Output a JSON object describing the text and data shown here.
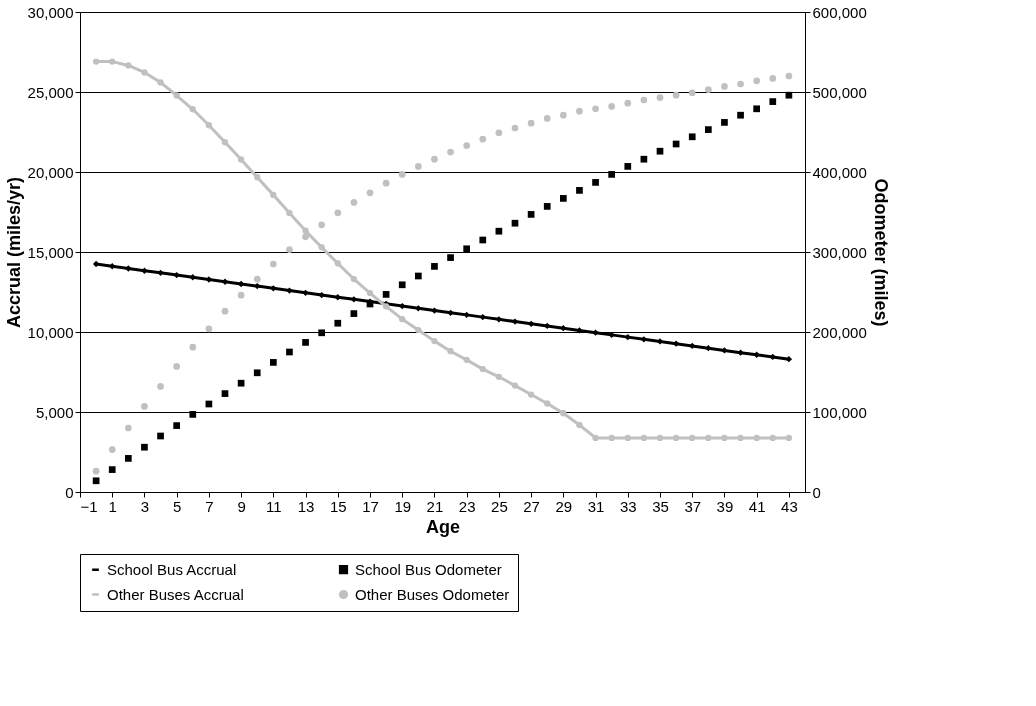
{
  "chart_data": {
    "type": "line",
    "xlabel": "Age",
    "ylabel": "Accrual (miles/yr)",
    "y2label": "Odometer (miles)",
    "x": [
      0,
      1,
      2,
      3,
      4,
      5,
      6,
      7,
      8,
      9,
      10,
      11,
      12,
      13,
      14,
      15,
      16,
      17,
      18,
      19,
      20,
      21,
      22,
      23,
      24,
      25,
      26,
      27,
      28,
      29,
      30,
      31,
      32,
      33,
      34,
      35,
      36,
      37,
      38,
      39,
      40,
      41,
      42,
      43
    ],
    "xlim": [
      -1,
      44
    ],
    "xticks": [
      -1,
      1,
      3,
      5,
      7,
      9,
      11,
      13,
      15,
      17,
      19,
      21,
      23,
      25,
      27,
      29,
      31,
      33,
      35,
      37,
      39,
      41,
      43
    ],
    "ylim": [
      0,
      30000
    ],
    "yticks": [
      0,
      {
        "value": 5000,
        "label": "5,000"
      },
      {
        "value": 10000,
        "label": "10,000"
      },
      {
        "value": 15000,
        "label": "15,000"
      },
      {
        "value": 20000,
        "label": "20,000"
      },
      {
        "value": 25000,
        "label": "25,000"
      },
      {
        "value": 30000,
        "label": "30,000"
      }
    ],
    "y2lim": [
      0,
      600000
    ],
    "y2ticks": [
      0,
      {
        "value": 100000,
        "label": "100,000"
      },
      {
        "value": 200000,
        "label": "200,000"
      },
      {
        "value": 300000,
        "label": "300,000"
      },
      {
        "value": 400000,
        "label": "400,000"
      },
      {
        "value": 500000,
        "label": "500,000"
      },
      {
        "value": 600000,
        "label": "600,000"
      }
    ],
    "grid": "y",
    "legend": "bottom",
    "series": [
      {
        "name": "School Bus Accrual",
        "marker": "diamond",
        "color": "#000000",
        "values": [
          14250,
          14110,
          13970,
          13830,
          13700,
          13560,
          13420,
          13280,
          13140,
          13000,
          12870,
          12730,
          12590,
          12450,
          12310,
          12170,
          12040,
          11900,
          11760,
          11620,
          11480,
          11340,
          11200,
          11070,
          10930,
          10790,
          10650,
          10510,
          10380,
          10240,
          10100,
          9960,
          9820,
          9680,
          9540,
          9410,
          9270,
          9130,
          8990,
          8850,
          8710,
          8580,
          8440,
          8300
        ]
      },
      {
        "name": "School Bus Odometer",
        "type": "scatter",
        "marker": "square",
        "axis": "y2",
        "color": "#000000",
        "values": [
          14000,
          28000,
          42000,
          56000,
          70000,
          83000,
          97000,
          110000,
          123000,
          136000,
          149000,
          162000,
          175000,
          187000,
          199000,
          211000,
          223000,
          235000,
          247000,
          259000,
          270000,
          282000,
          293000,
          304000,
          315000,
          326000,
          336000,
          347000,
          357000,
          367000,
          377000,
          387000,
          397000,
          407000,
          416000,
          426000,
          435000,
          444000,
          453000,
          462000,
          471000,
          479000,
          488000,
          496000
        ]
      },
      {
        "name": "Other Buses Accrual",
        "marker": "circle",
        "color": "#c0c0c0",
        "values": [
          26900,
          26900,
          26660,
          26220,
          25600,
          24780,
          23920,
          22920,
          21860,
          20780,
          19670,
          18570,
          17440,
          16330,
          15290,
          14290,
          13310,
          12430,
          11600,
          10800,
          10120,
          9430,
          8800,
          8260,
          7680,
          7200,
          6650,
          6090,
          5530,
          4920,
          4190,
          3380,
          3380,
          3380,
          3380,
          3380,
          3380,
          3380,
          3380,
          3380,
          3380,
          3380,
          3380,
          3380
        ]
      },
      {
        "name": "Other Buses Odometer",
        "type": "scatter",
        "marker": "circle",
        "axis": "y2",
        "color": "#c0c0c0",
        "values": [
          26000,
          53000,
          80000,
          107000,
          132000,
          157000,
          181000,
          204000,
          226000,
          246000,
          266000,
          285000,
          303000,
          319000,
          334000,
          349000,
          362000,
          374000,
          386000,
          397000,
          407000,
          416000,
          425000,
          433000,
          441000,
          449000,
          455000,
          461000,
          467000,
          471000,
          476000,
          479000,
          482000,
          486000,
          490000,
          493000,
          496000,
          499000,
          503000,
          507000,
          510000,
          514000,
          517000,
          520000
        ]
      }
    ]
  }
}
